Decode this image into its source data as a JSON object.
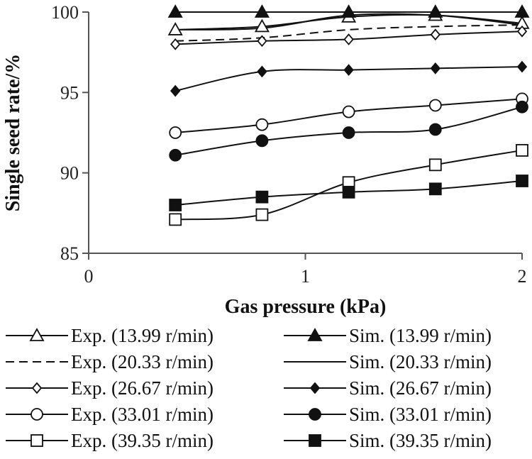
{
  "chart_data": {
    "type": "line",
    "title": "",
    "xlabel": "Gas pressure (kPa)",
    "ylabel": "Single seed rate/%",
    "xlim": [
      0,
      2
    ],
    "ylim": [
      85,
      100
    ],
    "x_ticks": [
      "0",
      "1",
      "2"
    ],
    "y_ticks": [
      "85",
      "90",
      "95",
      "100"
    ],
    "x": [
      0.4,
      0.8,
      1.2,
      1.6,
      2.0
    ],
    "series": [
      {
        "name": "Exp. (13.99 r/min)",
        "marker": "triangle-open",
        "dashed": false,
        "values": [
          98.9,
          99.1,
          99.7,
          99.8,
          99.3
        ]
      },
      {
        "name": "Sim. (13.99 r/min)",
        "marker": "triangle-filled",
        "dashed": false,
        "values": [
          100,
          100,
          100,
          100,
          100
        ]
      },
      {
        "name": "Exp. (20.33 r/min)",
        "marker": "none",
        "dashed": true,
        "values": [
          98.2,
          98.4,
          98.9,
          99.1,
          99.2
        ]
      },
      {
        "name": "Sim. (20.33 r/min)",
        "marker": "none",
        "dashed": false,
        "values": [
          98.9,
          99.0,
          99.8,
          99.8,
          99.2
        ]
      },
      {
        "name": "Exp. (26.67 r/min)",
        "marker": "diamond-open",
        "dashed": false,
        "values": [
          98.0,
          98.2,
          98.3,
          98.6,
          98.8
        ]
      },
      {
        "name": "Sim. (26.67 r/min)",
        "marker": "diamond-filled",
        "dashed": false,
        "values": [
          95.1,
          96.3,
          96.4,
          96.5,
          96.6
        ]
      },
      {
        "name": "Exp. (33.01 r/min)",
        "marker": "circle-open",
        "dashed": false,
        "values": [
          92.5,
          93.0,
          93.8,
          94.2,
          94.6
        ]
      },
      {
        "name": "Sim. (33.01 r/min)",
        "marker": "circle-filled",
        "dashed": false,
        "values": [
          91.1,
          92.0,
          92.5,
          92.7,
          94.1
        ]
      },
      {
        "name": "Exp. (39.35 r/min)",
        "marker": "square-open",
        "dashed": false,
        "values": [
          87.1,
          87.4,
          89.4,
          90.5,
          91.4
        ]
      },
      {
        "name": "Sim. (39.35 r/min)",
        "marker": "square-filled",
        "dashed": false,
        "values": [
          88.0,
          88.5,
          88.8,
          89.0,
          89.5
        ]
      }
    ],
    "legend_position": "bottom",
    "grid": false
  }
}
